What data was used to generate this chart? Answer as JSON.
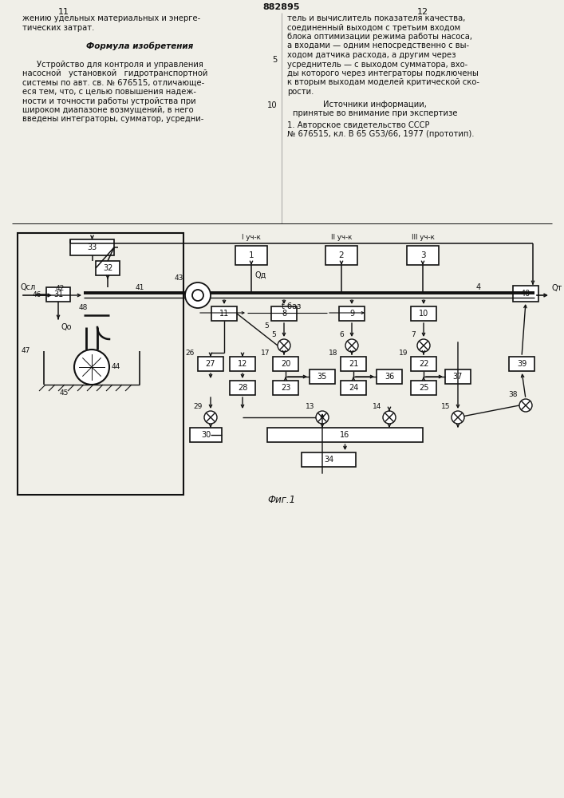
{
  "bg_color": "#f0efe8",
  "text_color": "#111111",
  "line_color": "#111111",
  "page_center": "882895",
  "page_left": "11",
  "page_right": "12",
  "fig_caption": "Фиг.1",
  "formula_header": "Формула изобретения",
  "left_col_lines": [
    "жению удельных материальных и энерге-",
    "тических затрат.",
    "",
    "Устройство для контроля и управления",
    "насосной   установкой   гидротранспортной",
    "системы по авт. св. № 676515, отличающе-",
    "еся тем, что, с целью повышения надеж-",
    "ности и точности работы устройства при",
    "широком диапазоне возмущений, в него",
    "введены интеграторы, сумматор, усредни-"
  ],
  "right_col_lines": [
    "тель и вычислитель показателя качества,",
    "соединенный выходом с третьим входом",
    "блока оптимизации режима работы насоса,",
    "а входами — одним непосредственно с вы-",
    "ходом датчика расхода, а другим через",
    "усреднитель — с выходом сумматора, вхо-",
    "ды которого через интеграторы подключены",
    "к вторым выходам моделей критической ско-",
    "рости."
  ],
  "sources_header": "Источники информации,",
  "sources_sub": "принятые во внимание при экспертизе",
  "sources_ref1": "1. Авторское свидетельство СССР",
  "sources_ref2": "№ 676515, кл. В 65 G53/66, 1977 (прототип)."
}
